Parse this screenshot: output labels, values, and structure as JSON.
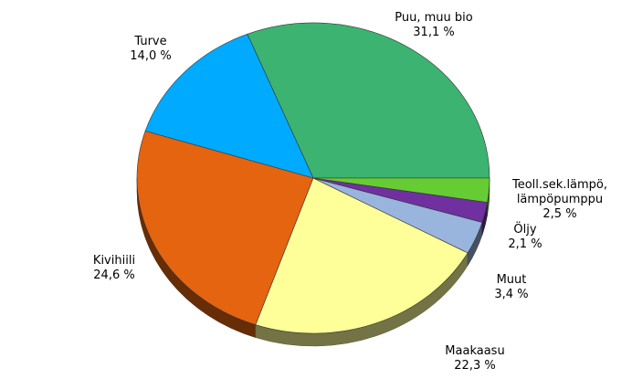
{
  "chart_data": {
    "type": "pie",
    "style": "3d",
    "start_angle_deg": 0,
    "direction": "counterclockwise",
    "slices": [
      {
        "name": "Puu, muu bio",
        "value_label": "31,1 %",
        "value": 31.1,
        "color": "#3cb371"
      },
      {
        "name": "Turve",
        "value_label": "14,0 %",
        "value": 14.0,
        "color": "#00aaff"
      },
      {
        "name": "Kivihiili",
        "value_label": "24,6 %",
        "value": 24.6,
        "color": "#e56410"
      },
      {
        "name": "Maakaasu",
        "value_label": "22,3 %",
        "value": 22.3,
        "color": "#ffff99"
      },
      {
        "name": "Muut",
        "value_label": "3,4 %",
        "value": 3.4,
        "color": "#99b4dd"
      },
      {
        "name": "Öljy",
        "value_label": "2,1 %",
        "value": 2.1,
        "color": "#7030a0"
      },
      {
        "name": "Teoll.sek.lämpö, lämpöpumppu",
        "name_lines": [
          "Teoll.sek.lämpö,",
          "lämpöpumppu"
        ],
        "value_label": "2,5 %",
        "value": 2.5,
        "color": "#66cc33"
      }
    ]
  }
}
